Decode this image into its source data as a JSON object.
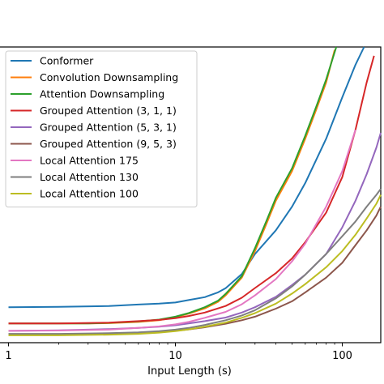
{
  "chart_data": {
    "type": "line",
    "xlabel": "Input Length (s)",
    "ylabel": "",
    "x_scale": "log",
    "xlim": [
      0.87,
      170
    ],
    "ylim": [
      0,
      100
    ],
    "x_ticks": [
      1,
      10,
      100
    ],
    "x_tick_labels": [
      "1",
      "10",
      "100"
    ],
    "grid": false,
    "legend_position": "upper-left",
    "series": [
      {
        "name": "Conformer",
        "color": "#1f77b4",
        "x": [
          1,
          2,
          4,
          6,
          8,
          10,
          12,
          15,
          18,
          20,
          25,
          30,
          40,
          50,
          60,
          70,
          80,
          100,
          120,
          135
        ],
        "y": [
          12.0,
          12.1,
          12.4,
          12.9,
          13.2,
          13.6,
          14.4,
          15.4,
          17.0,
          18.4,
          23.2,
          30.0,
          38.0,
          46.0,
          54.0,
          62.0,
          69.0,
          83.0,
          94.0,
          100.0
        ]
      },
      {
        "name": "Convolution Downsampling",
        "color": "#ff7f0e",
        "x": [
          1,
          2,
          3,
          4,
          6,
          8,
          10,
          12,
          15,
          18,
          20,
          25,
          30,
          35,
          40,
          50,
          60,
          70,
          80,
          90
        ],
        "y": [
          6.5,
          6.5,
          6.5,
          6.6,
          7.0,
          7.6,
          8.6,
          9.8,
          11.6,
          13.8,
          16.0,
          22.0,
          31.0,
          40.0,
          48.0,
          58.0,
          69.0,
          79.0,
          88.0,
          99.0
        ]
      },
      {
        "name": "Attention Downsampling",
        "color": "#2ca02c",
        "x": [
          1,
          2,
          3,
          4,
          6,
          8,
          10,
          12,
          15,
          18,
          20,
          25,
          30,
          35,
          40,
          50,
          60,
          70,
          80,
          92
        ],
        "y": [
          6.5,
          6.5,
          6.5,
          6.7,
          7.2,
          7.8,
          8.8,
          10.0,
          12.0,
          14.2,
          16.5,
          22.5,
          32.0,
          41.0,
          49.0,
          59.0,
          70.0,
          80.0,
          89.0,
          100.0
        ]
      },
      {
        "name": "Grouped Attention (3, 1, 1)",
        "color": "#d62728",
        "x": [
          1,
          2,
          4,
          6,
          8,
          10,
          12,
          15,
          20,
          25,
          30,
          40,
          50,
          60,
          80,
          100,
          120,
          140,
          155
        ],
        "y": [
          6.5,
          6.5,
          6.8,
          7.3,
          7.7,
          8.3,
          9.0,
          10.2,
          12.4,
          15.2,
          18.5,
          23.5,
          28.5,
          34.0,
          44.0,
          56.0,
          72.0,
          88.0,
          97.0
        ]
      },
      {
        "name": "Grouped Attention (5, 3, 1)",
        "color": "#9467bd",
        "x": [
          1,
          2,
          4,
          6,
          8,
          10,
          12,
          15,
          20,
          25,
          30,
          40,
          50,
          60,
          80,
          100,
          120,
          140,
          160,
          170
        ],
        "y": [
          4.0,
          4.2,
          4.6,
          5.0,
          5.4,
          5.9,
          6.5,
          7.3,
          8.5,
          10.2,
          12.0,
          15.5,
          19.5,
          23.0,
          30.0,
          39.0,
          48.0,
          57.0,
          66.0,
          71.0
        ]
      },
      {
        "name": "Grouped Attention (9, 5, 3)",
        "color": "#8c564b",
        "x": [
          1,
          2,
          3,
          4,
          6,
          8,
          10,
          12,
          15,
          20,
          25,
          30,
          40,
          50,
          60,
          80,
          100,
          120,
          140,
          160,
          170
        ],
        "y": [
          2.8,
          2.8,
          2.9,
          3.0,
          3.3,
          3.6,
          4.0,
          4.5,
          5.2,
          6.4,
          7.6,
          8.8,
          11.5,
          14.0,
          17.0,
          22.0,
          27.0,
          33.0,
          38.0,
          43.0,
          46.0
        ]
      },
      {
        "name": "Local Attention 175",
        "color": "#e377c2",
        "x": [
          1,
          2,
          4,
          6,
          8,
          10,
          12,
          15,
          20,
          25,
          30,
          40,
          50,
          60,
          80,
          100,
          120
        ],
        "y": [
          4.0,
          4.1,
          4.4,
          5.0,
          5.5,
          6.2,
          7.0,
          8.4,
          10.4,
          13.0,
          16.0,
          21.5,
          27.5,
          33.5,
          46.0,
          58.0,
          72.0
        ]
      },
      {
        "name": "Local Attention 130",
        "color": "#7f7f7f",
        "x": [
          1,
          2,
          4,
          6,
          8,
          10,
          12,
          15,
          20,
          25,
          30,
          40,
          50,
          60,
          80,
          100,
          120,
          140,
          160,
          170
        ],
        "y": [
          3.0,
          3.0,
          3.2,
          3.5,
          3.9,
          4.4,
          5.0,
          6.0,
          7.6,
          9.2,
          11.0,
          15.0,
          19.0,
          23.0,
          30.0,
          36.0,
          41.0,
          46.0,
          50.0,
          52.0
        ]
      },
      {
        "name": "Local Attention 100",
        "color": "#bcbd22",
        "x": [
          1,
          2,
          4,
          6,
          8,
          10,
          12,
          15,
          20,
          25,
          30,
          40,
          50,
          60,
          80,
          100,
          120,
          140,
          160,
          170
        ],
        "y": [
          2.5,
          2.5,
          2.7,
          3.0,
          3.4,
          3.9,
          4.5,
          5.4,
          6.8,
          8.4,
          10.0,
          13.2,
          16.6,
          19.8,
          25.5,
          31.0,
          36.5,
          42.0,
          47.0,
          50.0
        ]
      }
    ]
  }
}
